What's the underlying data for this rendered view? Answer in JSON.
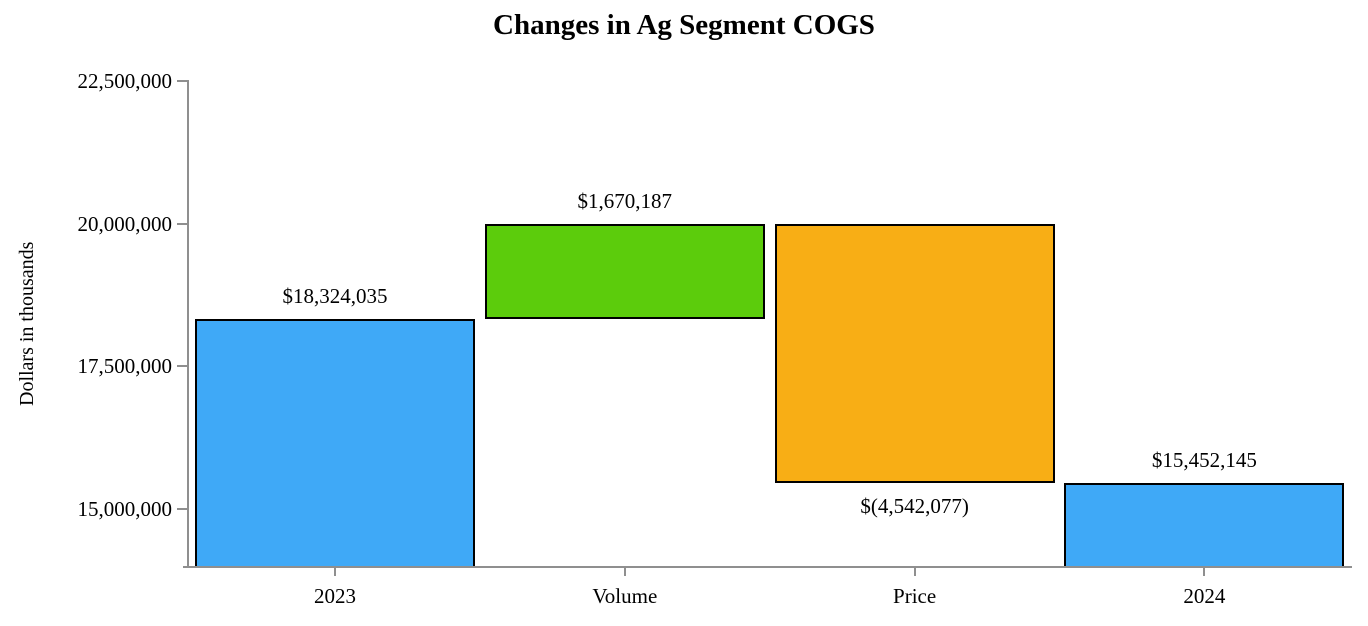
{
  "chart_data": {
    "type": "bar",
    "subtype": "waterfall",
    "title": "Changes in Ag Segment COGS",
    "xlabel": "",
    "ylabel": "Dollars in thousands",
    "categories": [
      "2023",
      "Volume",
      "Price",
      "2024"
    ],
    "bars": [
      {
        "category": "2023",
        "role": "total",
        "start": null,
        "end": 18324035,
        "value": 18324035,
        "label": "$18,324,035",
        "label_position": "above",
        "color": "#3fa9f7"
      },
      {
        "category": "Volume",
        "role": "increase",
        "start": 18324035,
        "end": 19994222,
        "value": 1670187,
        "label": "$1,670,187",
        "label_position": "above",
        "color": "#5ccc0c"
      },
      {
        "category": "Price",
        "role": "decrease",
        "start": 19994222,
        "end": 15452145,
        "value": -4542077,
        "label": "$(4,542,077)",
        "label_position": "below",
        "color": "#f8ae15"
      },
      {
        "category": "2024",
        "role": "total",
        "start": null,
        "end": 15452145,
        "value": 15452145,
        "label": "$15,452,145",
        "label_position": "above",
        "color": "#3fa9f7"
      }
    ],
    "yticks": [
      {
        "value": 15000000,
        "label": "15,000,000"
      },
      {
        "value": 17500000,
        "label": "17,500,000"
      },
      {
        "value": 20000000,
        "label": "20,000,000"
      },
      {
        "value": 22500000,
        "label": "22,500,000"
      }
    ],
    "ylim": [
      14000000,
      22500000
    ],
    "grid": false,
    "legend": false,
    "colors": {
      "total": "#3fa9f7",
      "increase": "#5ccc0c",
      "decrease": "#f8ae15",
      "bar_border": "#000000",
      "axis": "#8f8f8f",
      "text": "#000000"
    }
  }
}
